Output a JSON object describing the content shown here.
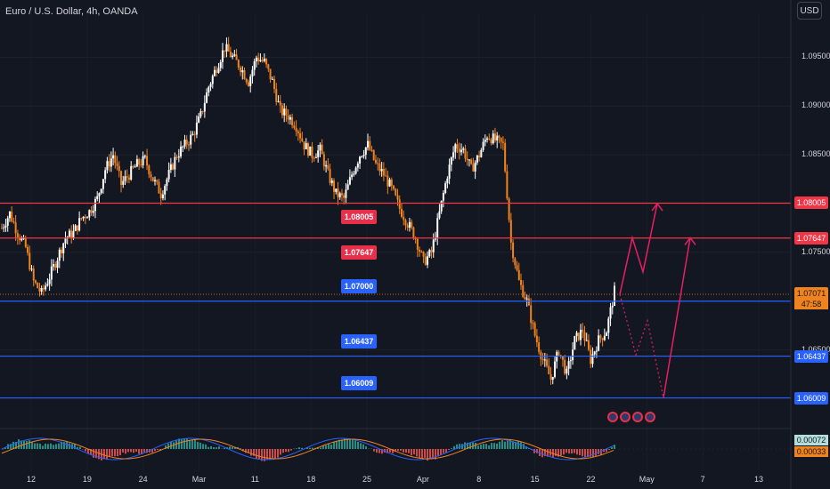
{
  "header": {
    "title": "Euro / U.S. Dollar, 4h, OANDA",
    "currency_button": "USD"
  },
  "colors": {
    "bg": "#131722",
    "up": "#ffffff",
    "down": "#f0831d",
    "red_line": "#f23645",
    "blue_line": "#2962ff",
    "projection": "#e91e63"
  },
  "chart_data": {
    "type": "candlestick",
    "ylim": [
      1.0585,
      1.0995
    ],
    "y_ticks": [
      "1.09500",
      "1.09000",
      "1.08500",
      "1.07500",
      "1.06500"
    ],
    "x_ticks": [
      "12",
      "19",
      "24",
      "Mar",
      "11",
      "18",
      "25",
      "Apr",
      "8",
      "15",
      "22",
      "May",
      "7",
      "13"
    ],
    "price_path": [
      1.0775,
      1.079,
      1.077,
      1.0755,
      1.072,
      1.0708,
      1.0725,
      1.0745,
      1.0765,
      1.077,
      1.0785,
      1.0792,
      1.0805,
      1.0835,
      1.085,
      1.082,
      1.083,
      1.084,
      1.0845,
      1.0825,
      1.081,
      1.083,
      1.085,
      1.086,
      1.087,
      1.089,
      1.092,
      1.094,
      1.096,
      1.095,
      1.094,
      1.0925,
      1.095,
      1.0945,
      1.0925,
      1.0895,
      1.089,
      1.088,
      1.086,
      1.085,
      1.0855,
      1.083,
      1.081,
      1.0805,
      1.083,
      1.085,
      1.086,
      1.084,
      1.083,
      1.0815,
      1.0795,
      1.078,
      1.0765,
      1.074,
      1.075,
      1.079,
      1.083,
      1.086,
      1.0855,
      1.0835,
      1.085,
      1.087,
      1.0865,
      1.086,
      1.076,
      1.072,
      1.07,
      1.0665,
      1.064,
      1.062,
      1.065,
      1.0625,
      1.066,
      1.067,
      1.064,
      1.066,
      1.067,
      1.071
    ],
    "last_price": "1.07071",
    "countdown": "47:58",
    "levels": [
      {
        "label": "1.08005",
        "value": 1.08005,
        "color": "red"
      },
      {
        "label": "1.07647",
        "value": 1.07647,
        "color": "red"
      },
      {
        "label": "1.07000",
        "value": 1.07,
        "color": "blue"
      },
      {
        "label": "1.06437",
        "value": 1.06437,
        "color": "blue"
      },
      {
        "label": "1.06009",
        "value": 1.06009,
        "color": "blue"
      }
    ],
    "projection_main": [
      1.0707,
      1.0765,
      1.073,
      1.08
    ],
    "projection_alt": [
      1.0707,
      1.0645,
      1.068,
      1.0601,
      1.0765
    ],
    "oscillator_tags": [
      "0.00072",
      "0.00033"
    ]
  }
}
